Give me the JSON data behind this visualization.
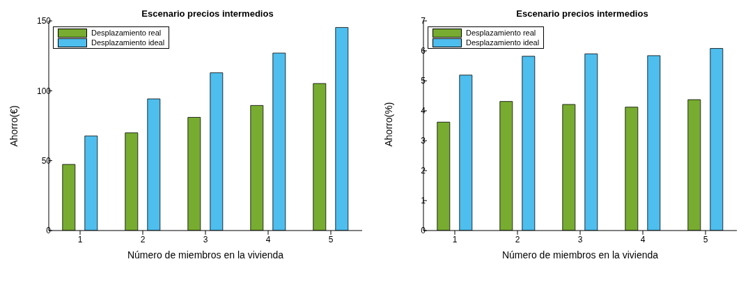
{
  "chart_data": [
    {
      "type": "bar",
      "title": "Escenario precios intermedios",
      "xlabel": "Número de miembros en la vivienda",
      "ylabel": "Ahorro(€)",
      "categories": [
        "1",
        "2",
        "3",
        "4",
        "5"
      ],
      "series": [
        {
          "name": "Desplazamiento real",
          "color": "#77ac30",
          "values": [
            47.3,
            69.9,
            81,
            89.5,
            105.2
          ]
        },
        {
          "name": "Desplazamiento ideal",
          "color": "#4dbeee",
          "values": [
            67.7,
            94.2,
            112.9,
            127,
            145.3
          ]
        }
      ],
      "ylim": [
        0,
        150
      ],
      "yticks": [
        0,
        50,
        100,
        150
      ],
      "grid": false,
      "legend": "top left"
    },
    {
      "type": "bar",
      "title": "Escenario precios intermedios",
      "xlabel": "Número de miembros en la vivienda",
      "ylabel": "Ahorro(%)",
      "categories": [
        "1",
        "2",
        "3",
        "4",
        "5"
      ],
      "series": [
        {
          "name": "Desplazamiento real",
          "color": "#77ac30",
          "values": [
            3.62,
            4.31,
            4.21,
            4.12,
            4.37
          ]
        },
        {
          "name": "Desplazamiento ideal",
          "color": "#4dbeee",
          "values": [
            5.19,
            5.82,
            5.9,
            5.84,
            6.08
          ]
        }
      ],
      "ylim": [
        0,
        7
      ],
      "yticks": [
        0,
        1,
        2,
        3,
        4,
        5,
        6,
        7
      ],
      "grid": false,
      "legend": "top left"
    }
  ]
}
